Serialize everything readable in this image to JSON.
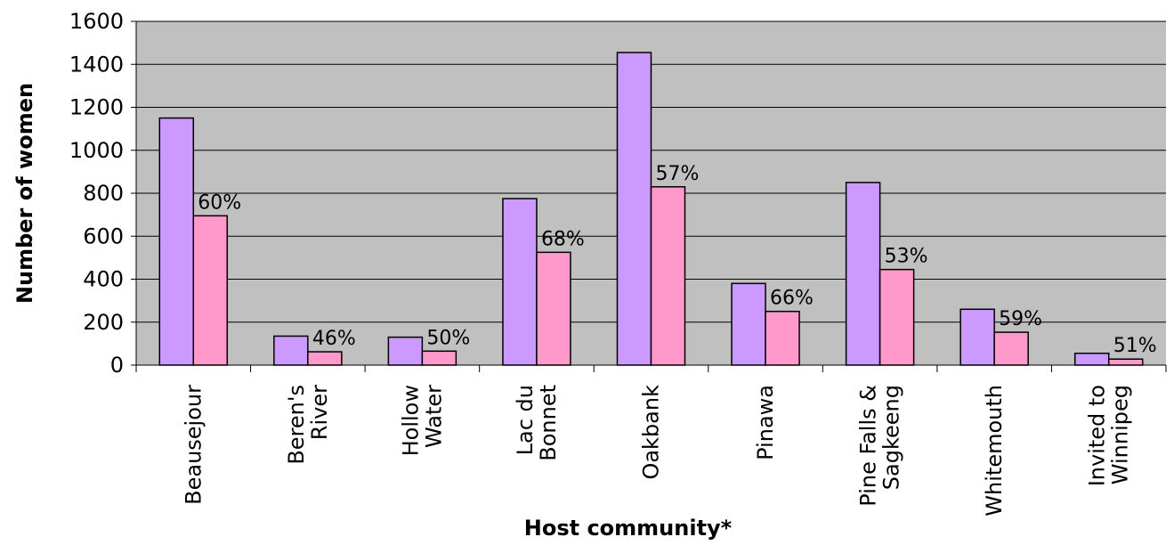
{
  "chart_data": {
    "type": "bar",
    "title": "",
    "xlabel": "Host community*",
    "ylabel": "Number of women",
    "ylim": [
      0,
      1600
    ],
    "yticks": [
      0,
      200,
      400,
      600,
      800,
      1000,
      1200,
      1400,
      1600
    ],
    "grid": true,
    "legend": "none",
    "categories": [
      [
        "Beausejour"
      ],
      [
        "Beren's",
        "River"
      ],
      [
        "Hollow",
        "Water"
      ],
      [
        "Lac du",
        "Bonnet"
      ],
      [
        "Oakbank"
      ],
      [
        "Pinawa"
      ],
      [
        "Pine Falls &",
        "Sagkeeng"
      ],
      [
        "Whitemouth"
      ],
      [
        "Invited to",
        "Winnipeg"
      ]
    ],
    "series": [
      {
        "values": [
          1150,
          135,
          130,
          775,
          1455,
          380,
          850,
          260,
          55
        ],
        "color": "#cc99ff"
      },
      {
        "values": [
          695,
          62,
          65,
          525,
          830,
          250,
          445,
          153,
          28
        ],
        "color": "#ff99cc"
      }
    ],
    "percent_labels": [
      "60%",
      "46%",
      "50%",
      "68%",
      "57%",
      "66%",
      "53%",
      "59%",
      "51%"
    ],
    "plot_background": "#c0c0c0"
  }
}
